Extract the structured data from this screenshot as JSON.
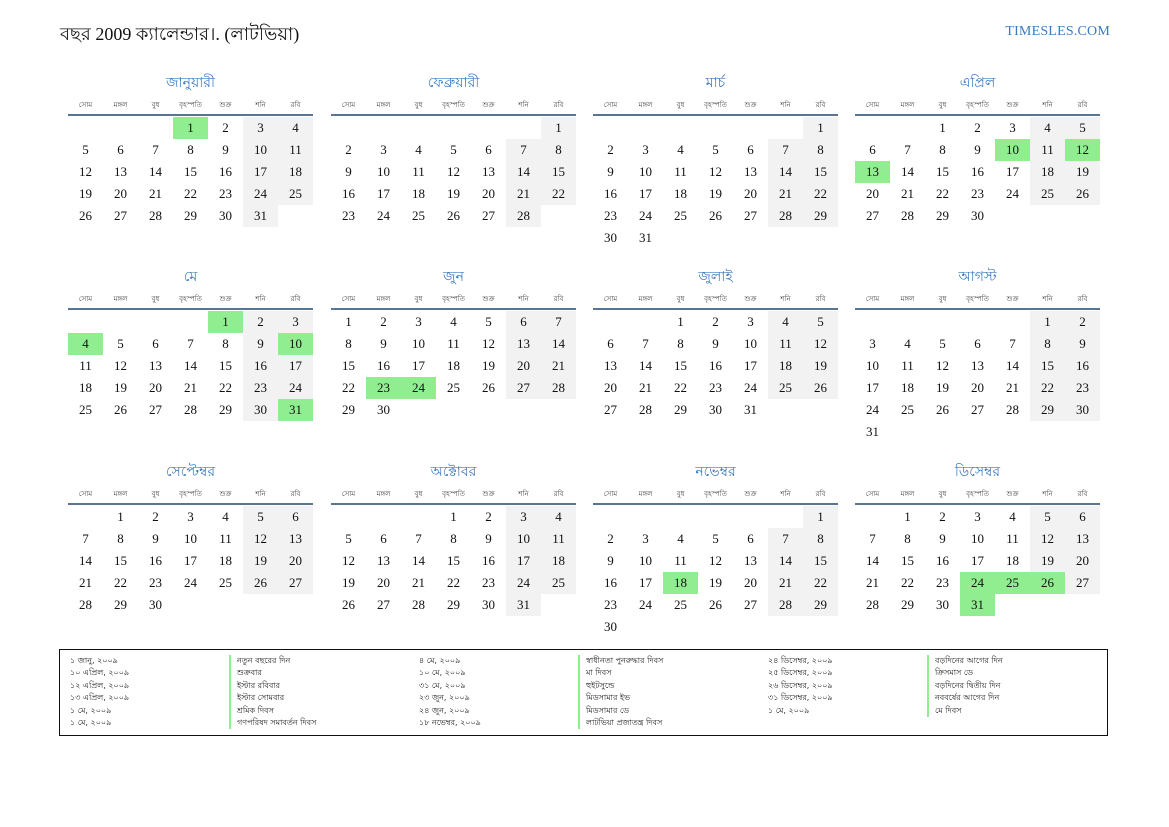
{
  "header": {
    "title": "বছর 2009 ক্যালেন্ডার।. (লাটভিয়া)",
    "brand": "TIMESLES.COM"
  },
  "weekdays": [
    "সোম",
    "মঙ্গল",
    "বুধ",
    "বৃহস্পতি",
    "শুক্র",
    "শনি",
    "রবি"
  ],
  "months": [
    {
      "name": "জানুয়ারী",
      "offset": 3,
      "days": 31,
      "holidays": [
        1
      ]
    },
    {
      "name": "ফেব্রুয়ারী",
      "offset": 6,
      "days": 28,
      "holidays": []
    },
    {
      "name": "মার্চ",
      "offset": 6,
      "days": 31,
      "holidays": []
    },
    {
      "name": "এপ্রিল",
      "offset": 2,
      "days": 30,
      "holidays": [
        10,
        12,
        13
      ]
    },
    {
      "name": "মে",
      "offset": 4,
      "days": 31,
      "holidays": [
        1,
        4,
        10,
        31
      ]
    },
    {
      "name": "জুন",
      "offset": 0,
      "days": 30,
      "holidays": [
        23,
        24
      ]
    },
    {
      "name": "জুলাই",
      "offset": 2,
      "days": 31,
      "holidays": []
    },
    {
      "name": "আগস্ট",
      "offset": 5,
      "days": 31,
      "holidays": []
    },
    {
      "name": "সেপ্টেম্বর",
      "offset": 1,
      "days": 30,
      "holidays": []
    },
    {
      "name": "অক্টোবর",
      "offset": 3,
      "days": 31,
      "holidays": []
    },
    {
      "name": "নভেম্বর",
      "offset": 6,
      "days": 30,
      "holidays": [
        18
      ]
    },
    {
      "name": "ডিসেম্বর",
      "offset": 1,
      "days": 31,
      "holidays": [
        24,
        25,
        26,
        31
      ]
    }
  ],
  "holiday_list": [
    [
      {
        "date": "১ জানু, ২০০৯",
        "name": "নতুন বছরের দিন"
      },
      {
        "date": "১০ এপ্রিল, ২০০৯",
        "name": "শুক্রবার"
      },
      {
        "date": "১২ এপ্রিল, ২০০৯",
        "name": "ইস্টার রবিবার"
      },
      {
        "date": "১৩ এপ্রিল, ২০০৯",
        "name": "ইস্টার সোমবার"
      },
      {
        "date": "১ মে, ২০০৯",
        "name": "শ্রমিক দিবস"
      },
      {
        "date": "১ মে, ২০০৯",
        "name": "গণপরিষদ সমাবর্তন দিবস"
      }
    ],
    [
      {
        "date": "৪ মে, ২০০৯",
        "name": "স্বাধীনতা পুনরুদ্ধার দিবস"
      },
      {
        "date": "১০ মে, ২০০৯",
        "name": "মা দিবস"
      },
      {
        "date": "৩১ মে, ২০০৯",
        "name": "হুইটসুন্ডে"
      },
      {
        "date": "২৩ জুন, ২০০৯",
        "name": "মিডসামার ইভ"
      },
      {
        "date": "২৪ জুন, ২০০৯",
        "name": "মিডসামার ডে"
      },
      {
        "date": "১৮ নভেম্বর, ২০০৯",
        "name": "লাটভিয়া প্রজাতন্ত্র দিবস"
      }
    ],
    [
      {
        "date": "২৪ ডিসেম্বর, ২০০৯",
        "name": "বড়দিনের আগের দিন"
      },
      {
        "date": "২৫ ডিসেম্বর, ২০০৯",
        "name": "ক্রিসমাস ডে"
      },
      {
        "date": "২৬ ডিসেম্বর, ২০০৯",
        "name": "বড়দিনের দ্বিতীয় দিন"
      },
      {
        "date": "৩১ ডিসেম্বর, ২০০৯",
        "name": "নববর্ষের আগের দিন"
      },
      {
        "date": "১ মে, ২০০৯",
        "name": "মে দিবস"
      }
    ]
  ]
}
